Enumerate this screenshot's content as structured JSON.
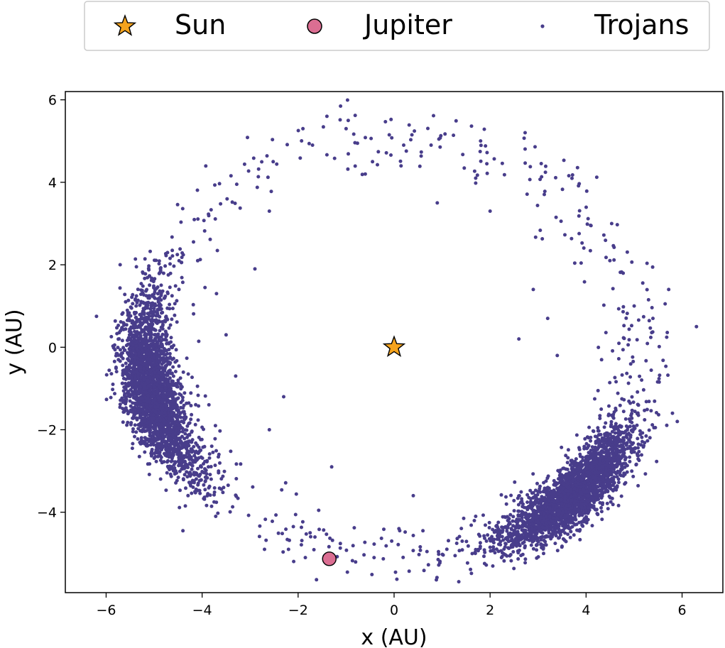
{
  "chart_data": {
    "type": "scatter",
    "title": "",
    "xlabel": "x (AU)",
    "ylabel": "y (AU)",
    "xlim": [
      -6.85,
      6.85
    ],
    "ylim": [
      -5.95,
      6.2
    ],
    "x_ticks": [
      -6,
      -4,
      -2,
      0,
      2,
      4,
      6
    ],
    "y_ticks": [
      -4,
      -2,
      0,
      2,
      4,
      6
    ],
    "x_tick_labels": [
      "−6",
      "−4",
      "−2",
      "0",
      "2",
      "4",
      "6"
    ],
    "y_tick_labels": [
      "−4",
      "−2",
      "0",
      "2",
      "4",
      "6"
    ],
    "grid": false,
    "legend_position": "top-center",
    "series": [
      {
        "name": "Sun",
        "marker": "star",
        "color": "#f5a31d",
        "points": [
          [
            0.0,
            0.0
          ]
        ]
      },
      {
        "name": "Jupiter",
        "marker": "circle",
        "color": "#db6e92",
        "points": [
          [
            -1.35,
            -5.13
          ]
        ]
      },
      {
        "name": "Trojans",
        "marker": "dot",
        "color": "#483d8b",
        "clouds": [
          {
            "name": "L4 (leading) swarm",
            "center_angle_deg": 192,
            "angle_spread_deg": 13,
            "radius_au": 5.2,
            "radius_spread_au": 0.28,
            "count": 2600
          },
          {
            "name": "L5 (trailing) swarm",
            "center_angle_deg": 317,
            "angle_spread_deg": 11,
            "radius_au": 5.2,
            "radius_spread_au": 0.28,
            "count": 2600
          }
        ],
        "sparse_arc": {
          "angle_range_deg": [
            -125,
            225
          ],
          "radius_au": 5.1,
          "radius_spread_au": 0.7,
          "count": 520
        },
        "points": [
          [
            -1.4,
            5.6
          ],
          [
            -1.9,
            5.3
          ],
          [
            -1.7,
            4.9
          ],
          [
            0.2,
            4.9
          ],
          [
            -0.45,
            4.5
          ],
          [
            -0.1,
            5.15
          ],
          [
            6.3,
            0.5
          ],
          [
            -6.2,
            0.75
          ],
          [
            -4.4,
            -4.45
          ],
          [
            -1.3,
            -2.9
          ],
          [
            -1.85,
            -5.1
          ],
          [
            -2.1,
            -4.35
          ],
          [
            -1.65,
            -4.6
          ],
          [
            -2.2,
            -4.9
          ],
          [
            -1.75,
            -4.5
          ],
          [
            0.1,
            -4.4
          ],
          [
            -0.05,
            -4.7
          ],
          [
            0.4,
            -3.6
          ],
          [
            1.7,
            -4.1
          ],
          [
            1.45,
            -4.15
          ],
          [
            0.6,
            -4.45
          ],
          [
            -2.7,
            -4.9
          ],
          [
            5.9,
            -1.8
          ],
          [
            5.8,
            -1.6
          ],
          [
            3.1,
            -4.8
          ],
          [
            2.5,
            -4.7
          ],
          [
            -2.6,
            -2.0
          ],
          [
            -3.8,
            -2.4
          ],
          [
            -0.6,
            4.2
          ],
          [
            -1.0,
            5.3
          ],
          [
            0.9,
            3.5
          ],
          [
            1.7,
            4.1
          ],
          [
            2.0,
            3.3
          ],
          [
            2.9,
            1.4
          ],
          [
            3.2,
            0.7
          ],
          [
            3.4,
            -0.2
          ],
          [
            2.6,
            0.2
          ],
          [
            -2.6,
            3.3
          ],
          [
            -2.9,
            1.9
          ],
          [
            -3.5,
            0.3
          ],
          [
            -3.3,
            -0.7
          ],
          [
            -2.3,
            -1.2
          ],
          [
            -3.7,
            1.3
          ]
        ]
      }
    ],
    "legend": [
      {
        "label": "Sun",
        "marker": "star",
        "color": "#f5a31d"
      },
      {
        "label": "Jupiter",
        "marker": "circle",
        "color": "#db6e92"
      },
      {
        "label": "Trojans",
        "marker": "dot",
        "color": "#483d8b"
      }
    ]
  }
}
